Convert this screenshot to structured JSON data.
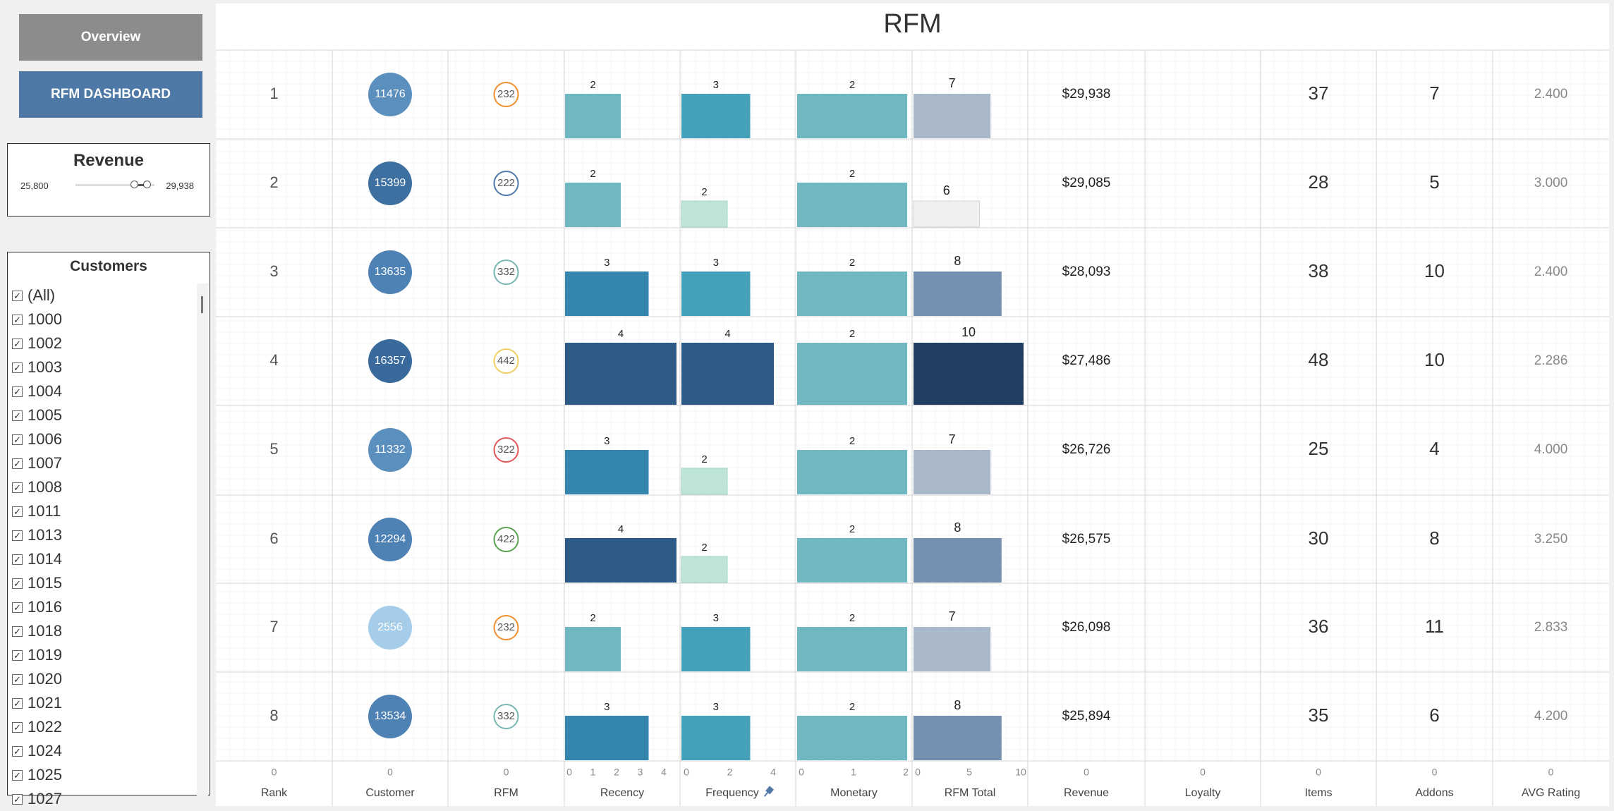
{
  "nav": {
    "overview_label": "Overview",
    "rfm_dashboard_label": "RFM DASHBOARD"
  },
  "revenue_filter": {
    "title": "Revenue",
    "min": "25,800",
    "max": "29,938"
  },
  "customers_filter": {
    "title": "Customers",
    "items": [
      "(All)",
      "1000",
      "1002",
      "1003",
      "1004",
      "1005",
      "1006",
      "1007",
      "1008",
      "1011",
      "1013",
      "1014",
      "1015",
      "1016",
      "1018",
      "1019",
      "1020",
      "1021",
      "1022",
      "1024",
      "1025",
      "1027"
    ]
  },
  "page_title": "RFM",
  "columns": [
    "Rank",
    "Customer",
    "RFM",
    "Recency",
    "Frequency",
    "Monetary",
    "RFM Total",
    "Revenue",
    "Loyalty",
    "Items",
    "Addons",
    "AVG Rating"
  ],
  "frequency_pin_icon": "pin-icon",
  "axes": {
    "zero": "0",
    "recency_ticks": [
      "0",
      "1",
      "2",
      "3",
      "4"
    ],
    "frequency_ticks": [
      "0",
      "2",
      "4"
    ],
    "monetary_ticks": [
      "0",
      "1",
      "2"
    ],
    "rfm_total_ticks": [
      "0",
      "5",
      "10"
    ]
  },
  "colors": {
    "rfm_circle_orange": "#f28e2b",
    "rfm_circle_blue": "#4e79a7",
    "rfm_circle_teal": "#76b7b2",
    "rfm_circle_red": "#e15759",
    "rfm_circle_green": "#59a14f",
    "rfm_circle_yellow": "#f1ce63"
  },
  "chart_data": {
    "type": "table",
    "rows": [
      {
        "rank": "1",
        "customer": "11476",
        "rfm": "232",
        "recency": 2,
        "frequency": 3,
        "monetary": 2,
        "rfm_total": 7,
        "revenue": "$29,938",
        "items": "37",
        "addons": "7",
        "avg_rating": "2.400"
      },
      {
        "rank": "2",
        "customer": "15399",
        "rfm": "222",
        "recency": 2,
        "frequency": 2,
        "monetary": 2,
        "rfm_total": 6,
        "revenue": "$29,085",
        "items": "28",
        "addons": "5",
        "avg_rating": "3.000"
      },
      {
        "rank": "3",
        "customer": "13635",
        "rfm": "332",
        "recency": 3,
        "frequency": 3,
        "monetary": 2,
        "rfm_total": 8,
        "revenue": "$28,093",
        "items": "38",
        "addons": "10",
        "avg_rating": "2.400"
      },
      {
        "rank": "4",
        "customer": "16357",
        "rfm": "442",
        "recency": 4,
        "frequency": 4,
        "monetary": 2,
        "rfm_total": 10,
        "revenue": "$27,486",
        "items": "48",
        "addons": "10",
        "avg_rating": "2.286"
      },
      {
        "rank": "5",
        "customer": "11332",
        "rfm": "322",
        "recency": 3,
        "frequency": 2,
        "monetary": 2,
        "rfm_total": 7,
        "revenue": "$26,726",
        "items": "25",
        "addons": "4",
        "avg_rating": "4.000"
      },
      {
        "rank": "6",
        "customer": "12294",
        "rfm": "422",
        "recency": 4,
        "frequency": 2,
        "monetary": 2,
        "rfm_total": 8,
        "revenue": "$26,575",
        "items": "30",
        "addons": "8",
        "avg_rating": "3.250"
      },
      {
        "rank": "7",
        "customer": "2556",
        "rfm": "232",
        "recency": 2,
        "frequency": 3,
        "monetary": 2,
        "rfm_total": 7,
        "revenue": "$26,098",
        "items": "36",
        "addons": "11",
        "avg_rating": "2.833"
      },
      {
        "rank": "8",
        "customer": "13534",
        "rfm": "332",
        "recency": 3,
        "frequency": 3,
        "monetary": 2,
        "rfm_total": 8,
        "revenue": "$25,894",
        "items": "35",
        "addons": "6",
        "avg_rating": "4.200"
      }
    ]
  }
}
